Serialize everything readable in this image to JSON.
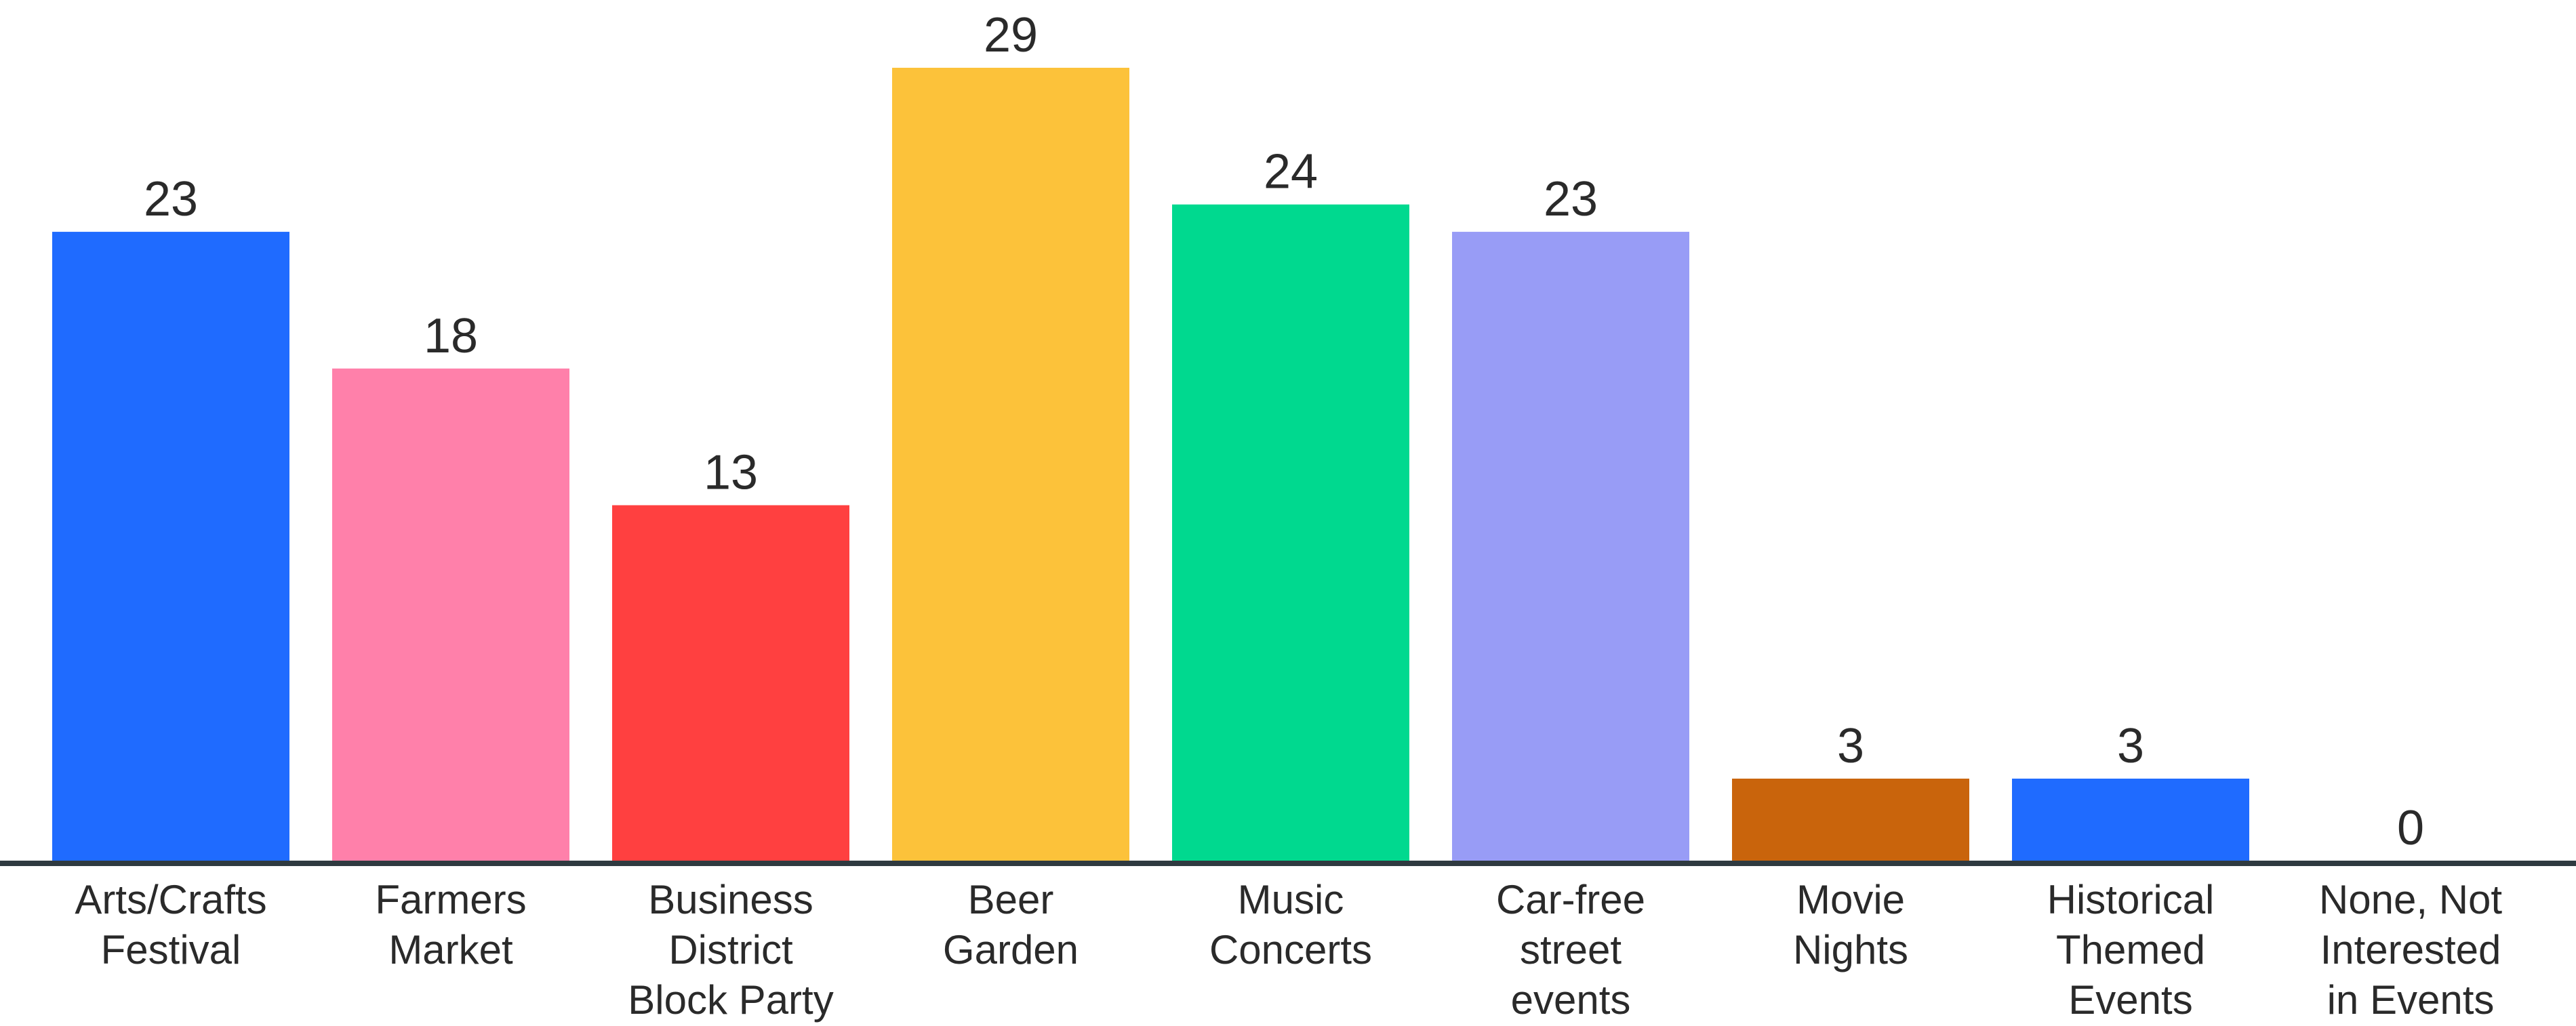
{
  "chart_data": {
    "type": "bar",
    "title": "",
    "xlabel": "",
    "ylabel": "",
    "ylim": [
      0,
      29
    ],
    "grid": false,
    "categories": [
      [
        "Arts/Crafts",
        "Festival"
      ],
      [
        "Farmers",
        "Market"
      ],
      [
        "Business",
        "District",
        "Block Party"
      ],
      [
        "Beer",
        "Garden"
      ],
      [
        "Music",
        "Concerts"
      ],
      [
        "Car-free",
        "street",
        "events"
      ],
      [
        "Movie",
        "Nights"
      ],
      [
        "Historical",
        "Themed",
        "Events"
      ],
      [
        "None, Not",
        "Interested",
        "in Events"
      ]
    ],
    "values": [
      23,
      18,
      13,
      29,
      24,
      23,
      3,
      3,
      0
    ],
    "colors": [
      "#1f6bff",
      "#ff80aa",
      "#ff4040",
      "#fcc23a",
      "#00d98f",
      "#989cf6",
      "#c9640c",
      "#1f6bff",
      "#1f6bff"
    ],
    "axis_color": "#2f3a40"
  }
}
